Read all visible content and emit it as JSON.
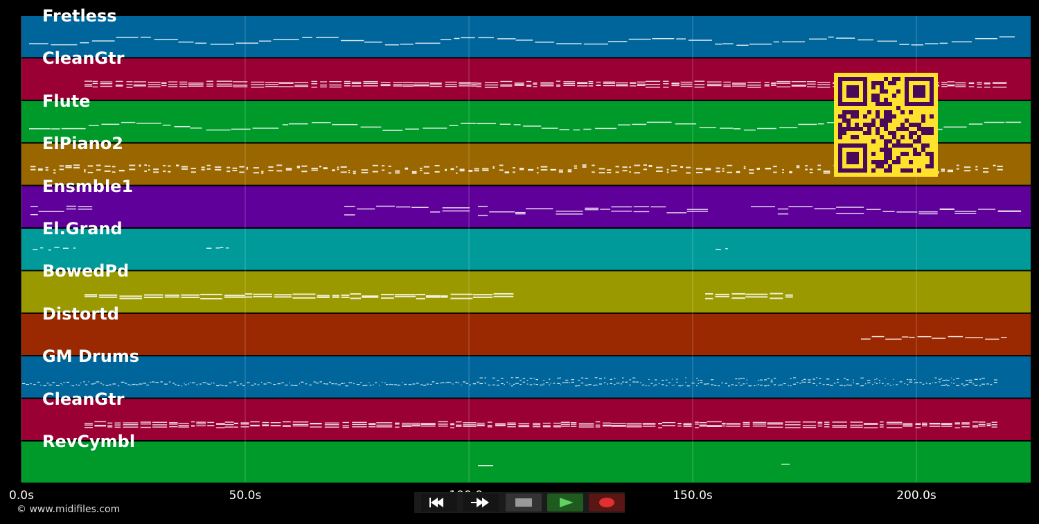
{
  "app": {
    "copyright": "© www.midifiles.com"
  },
  "timeline": {
    "ticks": [
      "0.0s",
      "50.0s",
      "100.0s",
      "150.0s",
      "200.0s"
    ],
    "tick_values": [
      0,
      50,
      100,
      150,
      200
    ],
    "max_time": 225
  },
  "tracks": [
    {
      "name": "Fretless",
      "color": "#00659a",
      "style": "line"
    },
    {
      "name": "CleanGtr",
      "color": "#9a0033",
      "style": "dense"
    },
    {
      "name": "Flute",
      "color": "#009a2b",
      "style": "line"
    },
    {
      "name": "ElPiano2",
      "color": "#9a6600",
      "style": "dots"
    },
    {
      "name": "Ensmble1",
      "color": "#5f009a",
      "style": "chunks"
    },
    {
      "name": "El.Grand",
      "color": "#009a9a",
      "style": "sparse"
    },
    {
      "name": "BowedPd",
      "color": "#9a9a00",
      "style": "chunks2"
    },
    {
      "name": "Distortd",
      "color": "#9a2800",
      "style": "late"
    },
    {
      "name": "GM Drums",
      "color": "#00659a",
      "style": "drums"
    },
    {
      "name": "CleanGtr",
      "color": "#9a0033",
      "style": "dense"
    },
    {
      "name": "RevCymbl",
      "color": "#009a2b",
      "style": "cymbal"
    }
  ],
  "transport": {
    "rewind_icon": "rewind-icon",
    "fast_forward_icon": "fast-forward-icon",
    "stop_icon": "stop-icon",
    "play_icon": "play-icon",
    "record_icon": "record-icon",
    "rewind_color": "#151515",
    "stop_color": "#333333",
    "play_color": "#1f5a1f",
    "record_color": "#5a1515"
  },
  "qr_code": {
    "icon": "qr-code-icon",
    "foreground": "#4a0a5a",
    "background": "#ffe22b"
  }
}
